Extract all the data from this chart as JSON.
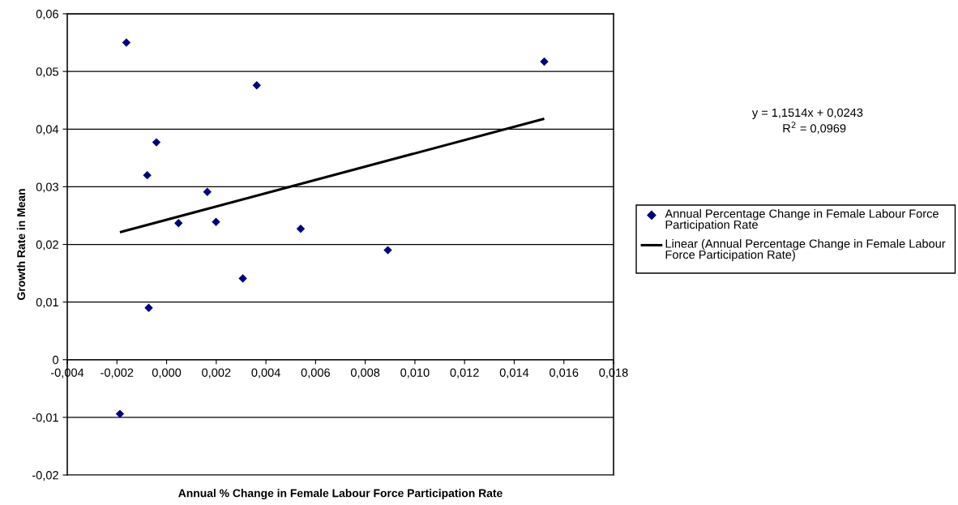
{
  "chart_data": {
    "type": "scatter",
    "xlabel": "Annual % Change in Female Labour Force Participation Rate",
    "ylabel": "Growth Rate in Mean",
    "xlim": [
      -0.004,
      0.018
    ],
    "xticks": [
      {
        "value": -0.004,
        "label": "-0,004"
      },
      {
        "value": -0.002,
        "label": "-0,002"
      },
      {
        "value": 0,
        "label": "0,000"
      },
      {
        "value": 0.002,
        "label": "0,002"
      },
      {
        "value": 0.004,
        "label": "0,004"
      },
      {
        "value": 0.006,
        "label": "0,006"
      },
      {
        "value": 0.008,
        "label": "0,008"
      },
      {
        "value": 0.01,
        "label": "0,010"
      },
      {
        "value": 0.012,
        "label": "0,012"
      },
      {
        "value": 0.014,
        "label": "0,014"
      },
      {
        "value": 0.016,
        "label": "0,016"
      },
      {
        "value": 0.018,
        "label": "0,018"
      }
    ],
    "ylim": [
      -0.02,
      0.06
    ],
    "yticks": [
      {
        "value": -0.02,
        "label": "-0,02"
      },
      {
        "value": -0.01,
        "label": "-0,01"
      },
      {
        "value": 0,
        "label": "0"
      },
      {
        "value": 0.01,
        "label": "0,01"
      },
      {
        "value": 0.02,
        "label": "0,02"
      },
      {
        "value": 0.03,
        "label": "0,03"
      },
      {
        "value": 0.04,
        "label": "0,04"
      },
      {
        "value": 0.05,
        "label": "0,05"
      },
      {
        "value": 0.06,
        "label": "0,06"
      }
    ],
    "grid": "y",
    "legend": "right",
    "series": [
      {
        "name": "Annual Percentage Change in Female Labour Force Participation Rate",
        "marker": "diamond",
        "color": "#000080",
        "x": [
          -0.00162,
          0.00363,
          -0.00041,
          -0.00078,
          0.00164,
          0.00048,
          0.00199,
          0.0054,
          0.00307,
          -0.00072,
          -0.00188,
          0.01521,
          0.00891
        ],
        "values": [
          0.055,
          0.0476,
          0.0377,
          0.032,
          0.0291,
          0.0237,
          0.0239,
          0.0227,
          0.0141,
          0.009,
          -0.0094,
          0.0517,
          0.019
        ]
      },
      {
        "name": "Linear (Annual Percentage Change in Female Labour Force Participation Rate)",
        "type": "line",
        "color": "#000000",
        "x": [
          -0.00188,
          0.01521
        ],
        "values": [
          0.0221,
          0.0418
        ]
      }
    ],
    "annotations": [
      "y = 1,1514x + 0,0243",
      "R$^{2}$ = 0,0969"
    ]
  }
}
